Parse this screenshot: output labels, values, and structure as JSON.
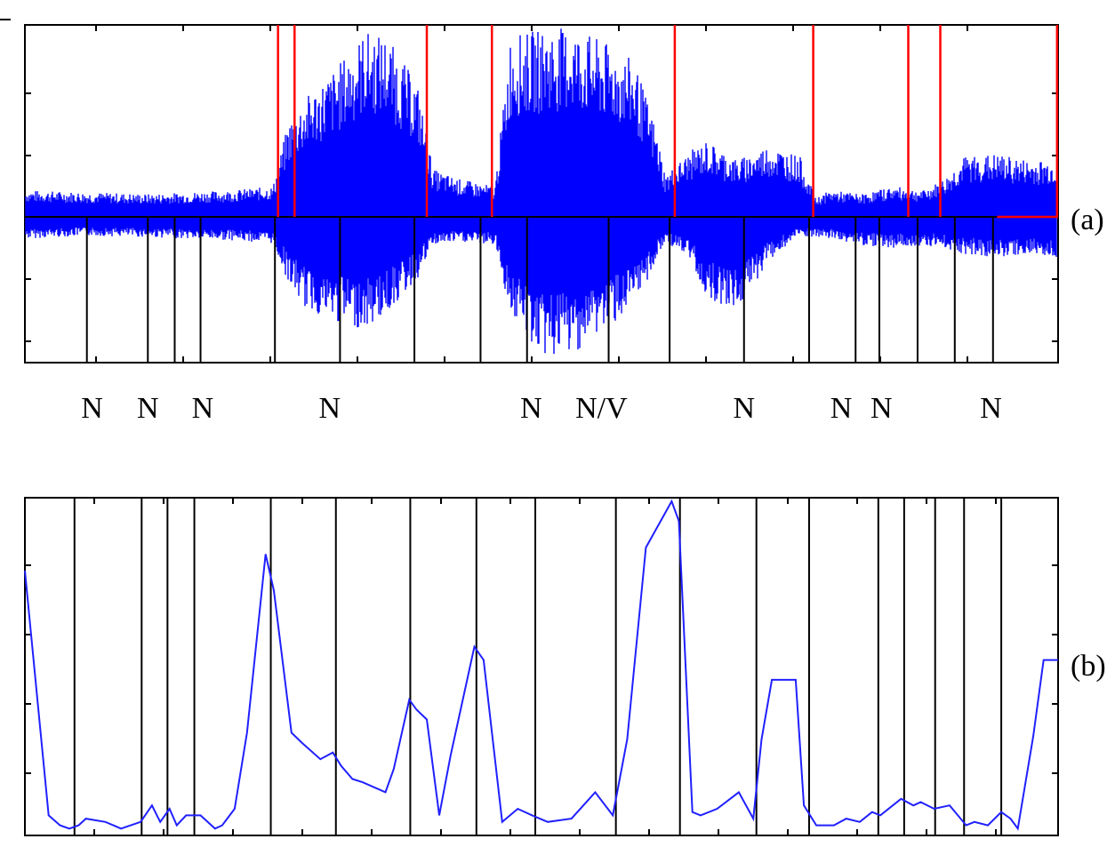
{
  "figure": {
    "panel_a_tag": "(a)",
    "panel_b_tag": "(b)"
  },
  "colors": {
    "signal": "#0000ff",
    "red_boundaries": "#ff0000",
    "black_boundaries": "#000000",
    "curve": "#2020ff"
  },
  "chart_data": [
    {
      "panel": "(a)",
      "type": "line",
      "description_of_series": "speech waveform with segment boundaries",
      "title": "",
      "xlabel": "",
      "ylabel": "",
      "xlim": [
        0,
        100
      ],
      "ylim": [
        -1,
        1
      ],
      "grid": false,
      "ticks_labeled": false,
      "series": [
        {
          "kind": "waveform-envelope",
          "x": [
            0,
            6,
            12,
            20,
            24,
            25.5,
            27,
            30,
            33,
            35,
            38,
            39.5,
            42,
            45.5,
            47,
            50,
            53,
            56,
            59,
            61,
            62,
            64.5,
            66,
            69,
            72,
            75,
            76.5,
            78,
            81,
            84,
            87,
            89,
            91,
            94,
            97,
            100
          ],
          "upper": [
            0.14,
            0.13,
            0.12,
            0.14,
            0.16,
            0.5,
            0.62,
            0.78,
            0.98,
            0.95,
            0.7,
            0.25,
            0.2,
            0.16,
            0.95,
            0.99,
            1.0,
            0.92,
            0.82,
            0.48,
            0.22,
            0.35,
            0.4,
            0.3,
            0.38,
            0.32,
            0.1,
            0.14,
            0.12,
            0.16,
            0.14,
            0.2,
            0.32,
            0.33,
            0.3,
            0.3
          ],
          "lower": [
            -0.14,
            -0.12,
            -0.13,
            -0.15,
            -0.17,
            -0.42,
            -0.58,
            -0.68,
            -0.72,
            -0.62,
            -0.4,
            -0.18,
            -0.16,
            -0.18,
            -0.62,
            -0.9,
            -0.88,
            -0.72,
            -0.58,
            -0.3,
            -0.16,
            -0.28,
            -0.52,
            -0.6,
            -0.28,
            -0.12,
            -0.14,
            -0.14,
            -0.18,
            -0.2,
            -0.18,
            -0.2,
            -0.24,
            -0.26,
            -0.24,
            -0.26
          ]
        }
      ],
      "red_boundaries_x": [
        24.5,
        26.1,
        38.9,
        45.2,
        62.9,
        76.3,
        85.5,
        88.6
      ],
      "red_final_step": {
        "x_from": 94.1,
        "x_to": 99.9,
        "level": 0.0
      },
      "black_boundaries_x": [
        6.0,
        11.9,
        14.5,
        17.0,
        24.2,
        30.5,
        37.7,
        44.1,
        48.6,
        56.5,
        62.4,
        69.6,
        75.9,
        80.4,
        82.7,
        86.4,
        90.0,
        93.7
      ],
      "segment_labels": [
        {
          "text": "N",
          "x": 6.5
        },
        {
          "text": "N",
          "x": 11.9
        },
        {
          "text": "N",
          "x": 17.2
        },
        {
          "text": "N",
          "x": 29.5
        },
        {
          "text": "N",
          "x": 49.0
        },
        {
          "text": "N/V",
          "x": 55.8
        },
        {
          "text": "N",
          "x": 69.6
        },
        {
          "text": "N",
          "x": 79.0
        },
        {
          "text": "N",
          "x": 82.9
        },
        {
          "text": "N",
          "x": 93.5
        }
      ]
    },
    {
      "panel": "(b)",
      "type": "line",
      "title": "",
      "xlabel": "",
      "ylabel": "",
      "xlim": [
        0,
        100
      ],
      "ylim": [
        0,
        1
      ],
      "grid": false,
      "ticks_labeled": false,
      "x": [
        0,
        2.3,
        3.4,
        4.3,
        5.2,
        5.9,
        7.8,
        9.3,
        11.2,
        12.3,
        13.1,
        14.0,
        14.7,
        15.6,
        17.0,
        18.4,
        19.1,
        20.3,
        21.5,
        23.3,
        24.1,
        25.8,
        26.8,
        28.6,
        29.8,
        30.6,
        31.7,
        32.7,
        34.9,
        35.7,
        37.2,
        37.9,
        38.9,
        40.1,
        41.2,
        43.5,
        44.4,
        46.2,
        47.7,
        49.1,
        50.6,
        52.9,
        55.2,
        56.9,
        58.3,
        60.1,
        62.6,
        63.3,
        64.6,
        65.4,
        67.0,
        69.1,
        70.5,
        71.3,
        72.3,
        74.6,
        75.4,
        76.6,
        78.3,
        79.5,
        80.8,
        82.0,
        82.8,
        84.0,
        84.8,
        86.0,
        86.7,
        88.0,
        89.5,
        91.1,
        91.9,
        93.2,
        94.5,
        95.4,
        96.1,
        97.6,
        98.6,
        100
      ],
      "y": [
        0.79,
        0.05,
        0.02,
        0.01,
        0.02,
        0.04,
        0.03,
        0.01,
        0.03,
        0.08,
        0.03,
        0.07,
        0.02,
        0.05,
        0.05,
        0.01,
        0.02,
        0.07,
        0.3,
        0.84,
        0.73,
        0.3,
        0.27,
        0.22,
        0.24,
        0.2,
        0.16,
        0.15,
        0.12,
        0.19,
        0.4,
        0.37,
        0.34,
        0.05,
        0.23,
        0.56,
        0.52,
        0.03,
        0.07,
        0.05,
        0.03,
        0.04,
        0.12,
        0.05,
        0.28,
        0.86,
        1.0,
        0.94,
        0.06,
        0.05,
        0.07,
        0.12,
        0.04,
        0.28,
        0.46,
        0.46,
        0.08,
        0.02,
        0.02,
        0.04,
        0.03,
        0.06,
        0.05,
        0.08,
        0.1,
        0.08,
        0.09,
        0.07,
        0.08,
        0.02,
        0.03,
        0.02,
        0.06,
        0.04,
        0.01,
        0.29,
        0.52,
        0.52
      ],
      "black_boundaries_x": [
        4.8,
        11.3,
        13.8,
        16.4,
        23.8,
        30.1,
        37.3,
        43.7,
        49.4,
        57.2,
        63.4,
        70.8,
        75.9,
        82.6,
        85.1,
        88.1,
        90.9,
        94.5
      ]
    }
  ]
}
